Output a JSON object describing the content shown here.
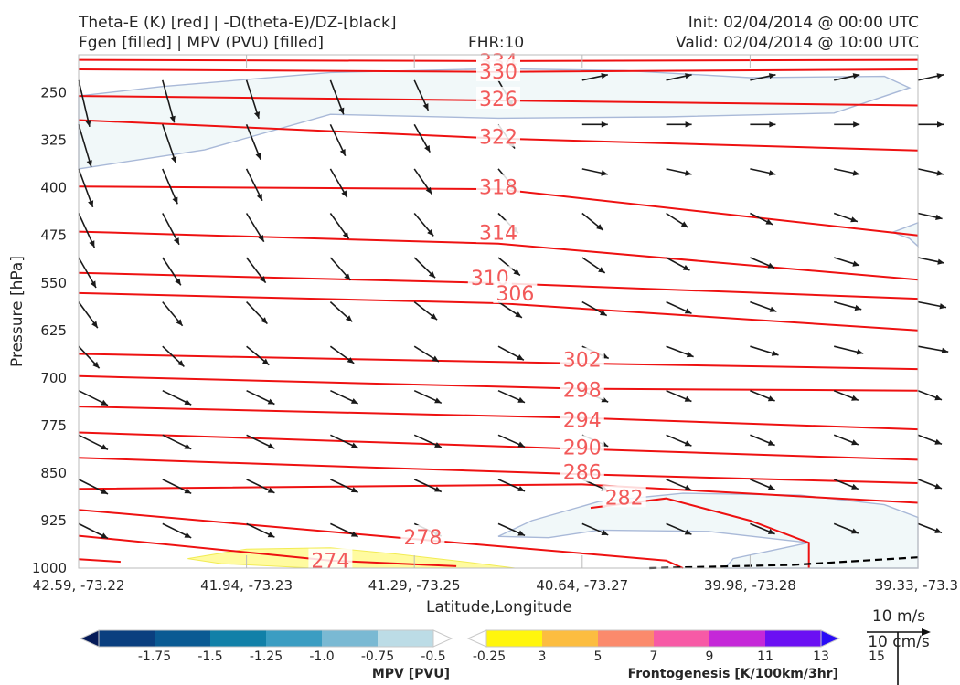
{
  "header": {
    "title_left_1": "Theta-E (K) [red] | -D(theta-E)/DZ-[black]",
    "title_left_2": "Fgen [filled] | MPV (PVU) [filled]",
    "title_center": "FHR:10",
    "title_right_1": "Init: 02/04/2014 @ 00:00 UTC",
    "title_right_2": "Valid: 02/04/2014 @ 10:00 UTC"
  },
  "colors": {
    "theta_e": "#ee1111",
    "theta_e_label": "#f25a5a",
    "vector": "#1a1a1a",
    "mpv_fill": "#f1f8f9",
    "mpv_edge": "#a9b9d8",
    "fgen_fill": "#fffba0",
    "fgen_edge": "#f2ec54",
    "axis_text": "#262626",
    "frame": "#bbbbbb"
  },
  "chart_data": {
    "type": "contour",
    "xlabel": "Latitude,Longitude",
    "ylabel": "Pressure [hPa]",
    "x_ticks": [
      "42.59, -73.22",
      "41.94, -73.23",
      "41.29, -73.25",
      "40.64, -73.27",
      "39.98, -73.28",
      "39.33, -73.3"
    ],
    "y_ticks": [
      250,
      325,
      400,
      475,
      550,
      625,
      700,
      775,
      850,
      925,
      1000
    ],
    "y_range": [
      190,
      1000
    ],
    "y_inverted": true,
    "theta_e_labels": [
      {
        "value": "334",
        "frac": 0.5,
        "p": 200
      },
      {
        "value": "330",
        "frac": 0.5,
        "p": 216
      },
      {
        "value": "326",
        "frac": 0.5,
        "p": 259
      },
      {
        "value": "322",
        "frac": 0.5,
        "p": 319
      },
      {
        "value": "318",
        "frac": 0.5,
        "p": 398
      },
      {
        "value": "314",
        "frac": 0.5,
        "p": 470
      },
      {
        "value": "310",
        "frac": 0.49,
        "p": 542
      },
      {
        "value": "306",
        "frac": 0.52,
        "p": 566
      },
      {
        "value": "302",
        "frac": 0.6,
        "p": 671
      },
      {
        "value": "298",
        "frac": 0.6,
        "p": 718
      },
      {
        "value": "294",
        "frac": 0.6,
        "p": 766
      },
      {
        "value": "290",
        "frac": 0.6,
        "p": 809
      },
      {
        "value": "286",
        "frac": 0.6,
        "p": 848
      },
      {
        "value": "282",
        "frac": 0.65,
        "p": 888
      },
      {
        "value": "278",
        "frac": 0.41,
        "p": 951
      },
      {
        "value": "274",
        "frac": 0.3,
        "p": 988
      }
    ],
    "wind_reference": {
      "value": "10 m/s",
      "vertical": "10 cm/s"
    },
    "colorbars": [
      {
        "label": "MPV [PVU]",
        "ticks": [
          "-1.75",
          "-1.5",
          "-1.25",
          "-1.0",
          "-0.75",
          "-0.5",
          "-0.25"
        ],
        "colors": [
          "#041a58",
          "#0a3f7f",
          "#0a5a93",
          "#1180a8",
          "#3b9dc2",
          "#7ab9d3",
          "#bcdce6",
          "#ffffff"
        ]
      },
      {
        "label": "Frontogenesis [K/100km/3hr]",
        "ticks": [
          "3",
          "5",
          "7",
          "9",
          "11",
          "13",
          "15"
        ],
        "colors": [
          "#ffffff",
          "#fff60c",
          "#fcbd40",
          "#fb8a6c",
          "#f75aa6",
          "#c528d8",
          "#6b10f3",
          "#2a0cf6"
        ]
      }
    ]
  }
}
